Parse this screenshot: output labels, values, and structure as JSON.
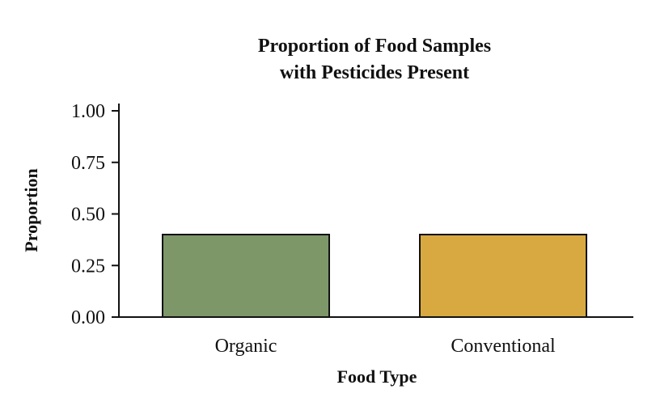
{
  "chart_data": {
    "type": "bar",
    "title_line1": "Proportion of Food Samples",
    "title_line2": "with Pesticides Present",
    "xlabel": "Food Type",
    "ylabel": "Proportion",
    "categories": [
      "Organic",
      "Conventional"
    ],
    "values": [
      0.4,
      0.4
    ],
    "colors": [
      "#7d9768",
      "#d8a940"
    ],
    "ylim": [
      0,
      1.0
    ],
    "yticks": [
      {
        "value": 0.0,
        "label": "0.00"
      },
      {
        "value": 0.25,
        "label": "0.25"
      },
      {
        "value": 0.5,
        "label": "0.50"
      },
      {
        "value": 0.75,
        "label": "0.75"
      },
      {
        "value": 1.0,
        "label": "1.00"
      }
    ],
    "grid": false,
    "legend": "none"
  }
}
